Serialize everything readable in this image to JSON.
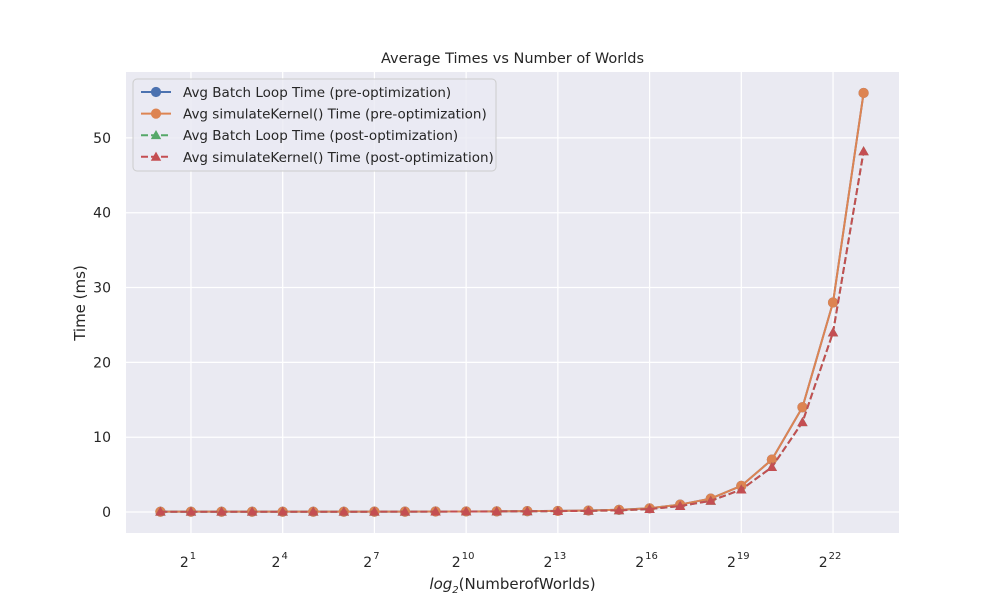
{
  "chart_data": {
    "type": "line",
    "title": "Average Times vs Number of Worlds",
    "xlabel": {
      "italic": "log",
      "sub": "2",
      "rest": "(NumberofWorlds)"
    },
    "ylabel": "Time (ms)",
    "x_scale": "log2",
    "x": [
      1,
      2,
      4,
      8,
      16,
      32,
      64,
      128,
      256,
      512,
      1024,
      2048,
      4096,
      8192,
      16384,
      32768,
      65536,
      131072,
      262144,
      524288,
      1048576,
      2097152,
      4194304,
      8388608
    ],
    "x_ticks": [
      {
        "base": "2",
        "exp": "1",
        "value": 2
      },
      {
        "base": "2",
        "exp": "4",
        "value": 16
      },
      {
        "base": "2",
        "exp": "7",
        "value": 128
      },
      {
        "base": "2",
        "exp": "10",
        "value": 1024
      },
      {
        "base": "2",
        "exp": "13",
        "value": 8192
      },
      {
        "base": "2",
        "exp": "16",
        "value": 65536
      },
      {
        "base": "2",
        "exp": "19",
        "value": 524288
      },
      {
        "base": "2",
        "exp": "22",
        "value": 4194304
      }
    ],
    "y_ticks": [
      0,
      10,
      20,
      30,
      40,
      50
    ],
    "ylim": [
      -2.8,
      58.8
    ],
    "grid": true,
    "legend_position": "top-left",
    "series": [
      {
        "name": "Avg Batch Loop Time (pre-optimization)",
        "color": "#4c72b0",
        "marker": "circle",
        "linestyle": "solid",
        "values": [
          0.05,
          0.05,
          0.05,
          0.05,
          0.05,
          0.05,
          0.05,
          0.06,
          0.06,
          0.07,
          0.08,
          0.09,
          0.12,
          0.15,
          0.2,
          0.3,
          0.5,
          1.0,
          1.8,
          3.5,
          7.0,
          14.0,
          28.0,
          56.0
        ]
      },
      {
        "name": "Avg simulateKernel() Time (pre-optimization)",
        "color": "#dd8452",
        "marker": "circle",
        "linestyle": "solid",
        "values": [
          0.05,
          0.05,
          0.05,
          0.05,
          0.05,
          0.05,
          0.05,
          0.06,
          0.06,
          0.07,
          0.08,
          0.09,
          0.12,
          0.15,
          0.2,
          0.3,
          0.5,
          1.0,
          1.8,
          3.5,
          7.0,
          14.0,
          28.0,
          56.0
        ]
      },
      {
        "name": "Avg Batch Loop Time (post-optimization)",
        "color": "#55a868",
        "marker": "triangle",
        "linestyle": "dashed",
        "values": [
          0.04,
          0.04,
          0.04,
          0.04,
          0.04,
          0.04,
          0.04,
          0.05,
          0.05,
          0.06,
          0.07,
          0.08,
          0.1,
          0.12,
          0.16,
          0.22,
          0.4,
          0.8,
          1.5,
          3.0,
          6.0,
          12.0,
          24.0,
          48.2
        ]
      },
      {
        "name": "Avg simulateKernel() Time (post-optimization)",
        "color": "#c44e52",
        "marker": "triangle",
        "linestyle": "dashed",
        "values": [
          0.04,
          0.04,
          0.04,
          0.04,
          0.04,
          0.04,
          0.04,
          0.05,
          0.05,
          0.06,
          0.07,
          0.08,
          0.1,
          0.12,
          0.16,
          0.22,
          0.4,
          0.8,
          1.5,
          3.0,
          6.0,
          12.0,
          24.0,
          48.2
        ]
      }
    ]
  }
}
